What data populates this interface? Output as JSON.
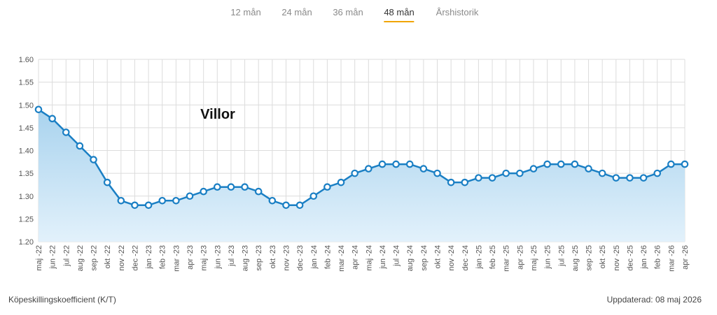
{
  "tabs": [
    {
      "label": "12 mån",
      "active": false
    },
    {
      "label": "24 mån",
      "active": false
    },
    {
      "label": "36 mån",
      "active": false
    },
    {
      "label": "48 mån",
      "active": true
    },
    {
      "label": "Årshistorik",
      "active": false
    }
  ],
  "chart_data": {
    "type": "area",
    "title": "Villor",
    "xlabel": "",
    "ylabel": "",
    "ylim": [
      1.2,
      1.6
    ],
    "yticks": [
      "1.20",
      "1.25",
      "1.30",
      "1.35",
      "1.40",
      "1.45",
      "1.50",
      "1.55",
      "1.60"
    ],
    "grid": true,
    "categories": [
      "maj -22",
      "jun -22",
      "jul -22",
      "aug -22",
      "sep -22",
      "okt -22",
      "nov -22",
      "dec -22",
      "jan -23",
      "feb -23",
      "mar -23",
      "apr -23",
      "maj -23",
      "jun -23",
      "jul -23",
      "aug -23",
      "sep -23",
      "okt -23",
      "nov -23",
      "dec -23",
      "jan -24",
      "feb -24",
      "mar -24",
      "apr -24",
      "maj -24",
      "jun -24",
      "jul -24",
      "aug -24",
      "sep -24",
      "okt -24",
      "nov -24",
      "dec -24",
      "jan -25",
      "feb -25",
      "mar -25",
      "apr -25",
      "maj -25",
      "jun -25",
      "jul -25",
      "aug -25",
      "sep -25",
      "okt -25",
      "nov -25",
      "dec -25",
      "jan -26",
      "feb -26",
      "mar -26",
      "apr -26"
    ],
    "values": [
      1.49,
      1.47,
      1.44,
      1.41,
      1.38,
      1.33,
      1.29,
      1.28,
      1.28,
      1.29,
      1.29,
      1.3,
      1.31,
      1.32,
      1.32,
      1.32,
      1.31,
      1.29,
      1.28,
      1.28,
      1.3,
      1.32,
      1.33,
      1.35,
      1.36,
      1.37,
      1.37,
      1.37,
      1.36,
      1.35,
      1.33,
      1.33,
      1.34,
      1.34,
      1.35,
      1.35,
      1.36,
      1.37,
      1.37,
      1.37,
      1.36,
      1.35,
      1.34,
      1.34,
      1.34,
      1.35,
      1.37,
      1.37
    ],
    "colors": {
      "line": "#1a7fc4",
      "fill_top": "#a9d3ee",
      "fill_bottom": "#e2f1fb",
      "grid": "#dcdcdc",
      "point_fill": "#ffffff"
    }
  },
  "footer": {
    "left": "Köpeskillingskoefficient (K/T)",
    "right": "Uppdaterad: 08 maj 2026"
  }
}
